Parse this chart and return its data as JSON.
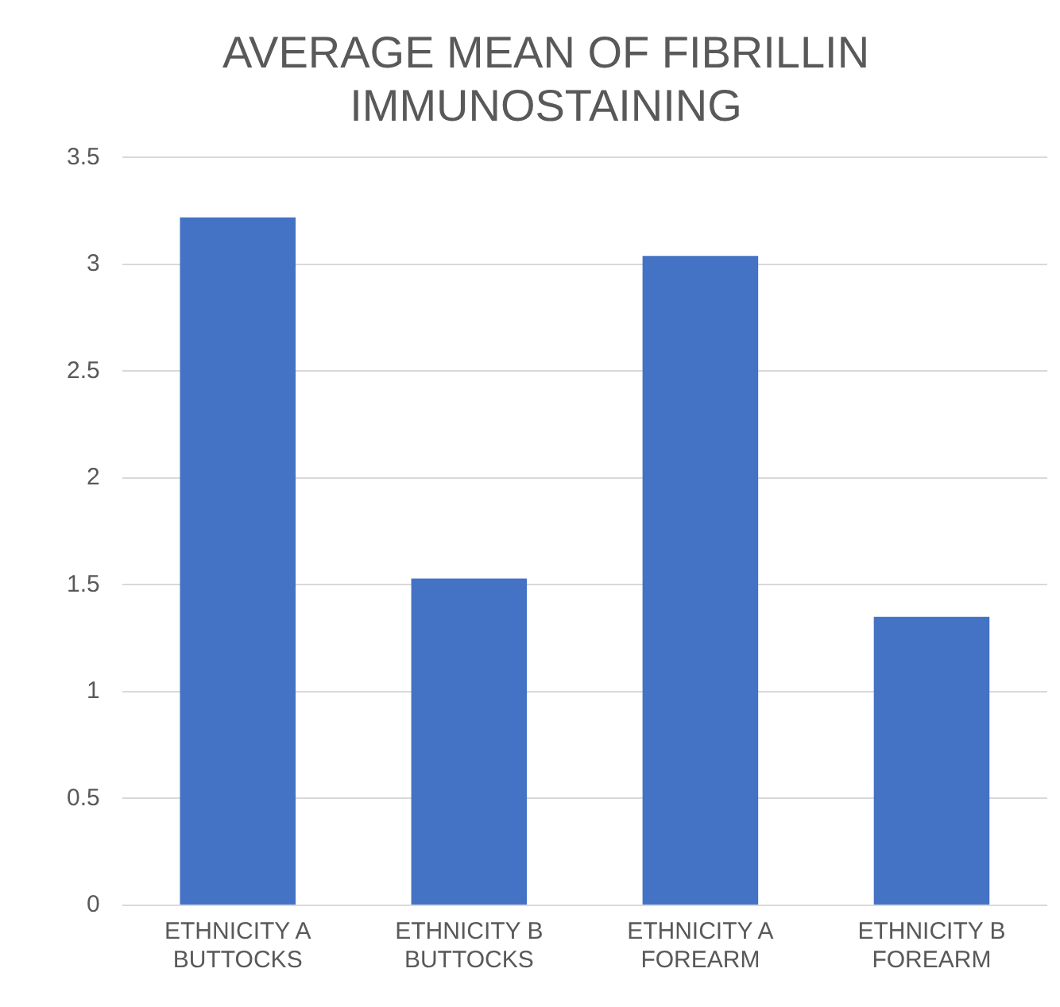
{
  "chart_data": {
    "type": "bar",
    "title": "AVERAGE MEAN OF FIBRILLIN IMMUNOSTAINING",
    "categories": [
      "ETHNICITY A BUTTOCKS",
      "ETHNICITY B BUTTOCKS",
      "ETHNICITY A FOREARM",
      "ETHNICITY B FOREARM"
    ],
    "values": [
      3.22,
      1.53,
      3.04,
      1.35
    ],
    "color": "#4472c4",
    "ylim": [
      0,
      3.5
    ],
    "yticks": [
      0,
      0.5,
      1,
      1.5,
      2,
      2.5,
      3,
      3.5
    ],
    "grid": "y",
    "legend": false
  }
}
